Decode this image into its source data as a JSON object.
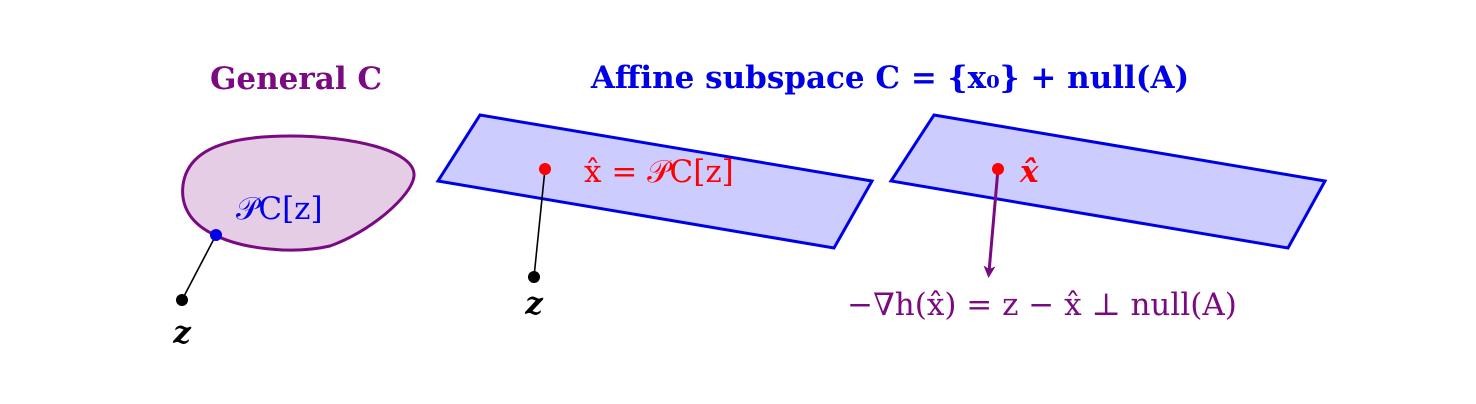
{
  "colors": {
    "purple": "#7a0a82",
    "purple_fill": "#e6cde6",
    "blue": "#0000e6",
    "blue_fill": "#ccccff",
    "red": "#ff0000",
    "black": "#000000"
  },
  "panel_general": {
    "title": "General C",
    "projection_label": "𝒫C[z]",
    "point_label": "z"
  },
  "panel_affine": {
    "title": "Affine subspace C = {x₀} + null(A)",
    "projection_label": "x̂ = 𝒫C[z]",
    "point_label": "z"
  },
  "panel_gradient": {
    "projection_label": "x̂",
    "gradient_label": "−∇h(x̂) = z − x̂ ⊥ null(A)"
  }
}
